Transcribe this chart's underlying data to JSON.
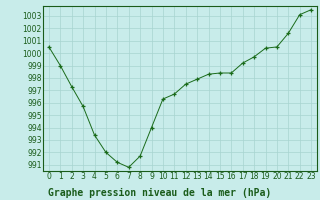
{
  "x": [
    0,
    1,
    2,
    3,
    4,
    5,
    6,
    7,
    8,
    9,
    10,
    11,
    12,
    13,
    14,
    15,
    16,
    17,
    18,
    19,
    20,
    21,
    22,
    23
  ],
  "y": [
    1000.5,
    999.0,
    997.3,
    995.7,
    993.4,
    992.0,
    991.2,
    990.8,
    991.7,
    994.0,
    996.3,
    996.7,
    997.5,
    997.9,
    998.3,
    998.4,
    998.4,
    999.2,
    999.7,
    1000.4,
    1000.5,
    1001.6,
    1003.1,
    1003.5
  ],
  "line_color": "#1a6b1a",
  "marker": "+",
  "bg_color": "#c8ecea",
  "grid_color": "#a8d4d0",
  "title": "Graphe pression niveau de la mer (hPa)",
  "ylim_min": 990.5,
  "ylim_max": 1003.8,
  "yticks": [
    991,
    992,
    993,
    994,
    995,
    996,
    997,
    998,
    999,
    1000,
    1001,
    1002,
    1003
  ],
  "xticks": [
    0,
    1,
    2,
    3,
    4,
    5,
    6,
    7,
    8,
    9,
    10,
    11,
    12,
    13,
    14,
    15,
    16,
    17,
    18,
    19,
    20,
    21,
    22,
    23
  ],
  "title_fontsize": 7.0,
  "tick_fontsize": 5.5,
  "title_color": "#1a5c1a",
  "tick_color": "#1a5c1a",
  "spine_color": "#1a5c1a",
  "line_color_dark": "#1a5c1a"
}
